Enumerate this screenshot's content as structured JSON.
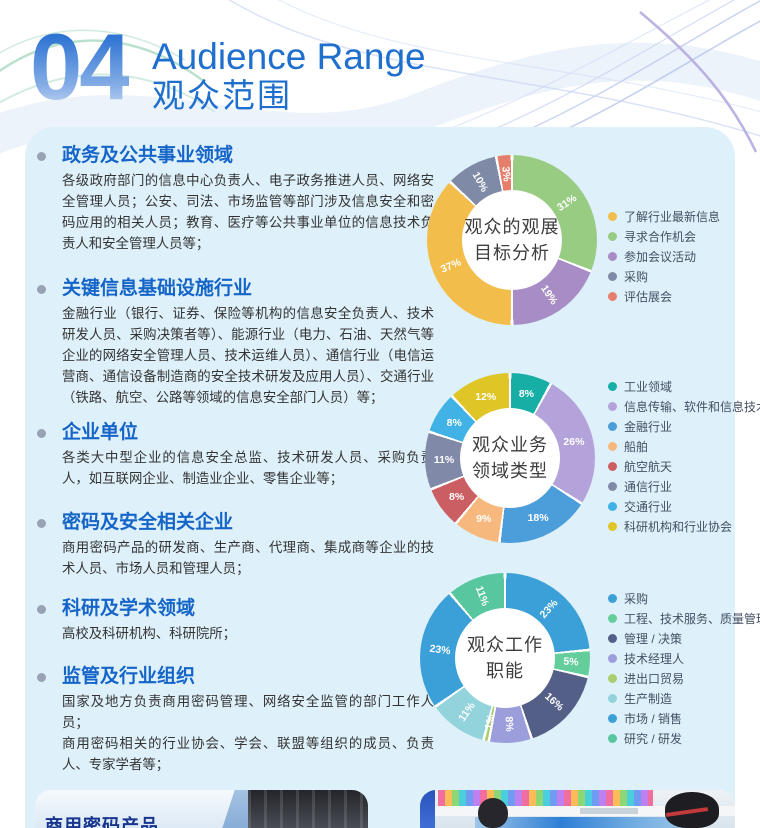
{
  "page": {
    "number": "04",
    "title_en": "Audience Range",
    "title_zh": "观众范围"
  },
  "colors": {
    "accent_blue": "#1565c9",
    "title_blue": "#1f6fce",
    "card_background": "#def0f9",
    "caption_blue": "#17348f",
    "bullet_gray": "#97a2b4"
  },
  "sections": [
    {
      "heading": "政务及公共事业领域",
      "body": [
        "各级政府部门的信息中心负责人、电子政务推进人员、网络安全管理人员；公安、司法、市场监管等部门涉及信息安全和密码应用的相关人员；教育、医疗等公共事业单位的信息技术负责人和安全管理人员等；"
      ]
    },
    {
      "heading": "关键信息基础设施行业",
      "body": [
        "金融行业（银行、证券、保险等机构的信息安全负责人、技术研发人员、采购决策者等）、能源行业（电力、石油、天然气等企业的网络安全管理人员、技术运维人员）、通信行业（电信运营商、通信设备制造商的安全技术研发及应用人员）、交通行业（铁路、航空、公路等领域的信息安全部门人员）等；"
      ]
    },
    {
      "heading": "企业单位",
      "body": [
        "各类大中型企业的信息安全总监、技术研发人员、采购负责人，如互联网企业、制造业企业、零售企业等；"
      ]
    },
    {
      "heading": "密码及安全相关企业",
      "body": [
        "商用密码产品的研发商、生产商、代理商、集成商等企业的技术人员、市场人员和管理人员；"
      ]
    },
    {
      "heading": "科研及学术领域",
      "body": [
        "高校及科研机构、科研院所；"
      ]
    },
    {
      "heading": "监管及行业组织",
      "body": [
        "国家及地方负责商用密码管理、网络安全监管的部门工作人员；",
        "商用密码相关的行业协会、学会、联盟等组织的成员、负责人、专家学者等；"
      ]
    }
  ],
  "chart_data": [
    {
      "type": "pie",
      "donut": true,
      "title": "观众的观展目标分析",
      "title_lines": [
        "观众的观展",
        "目标分析"
      ],
      "legend_position": "right",
      "label_rotation": "tangential",
      "slices": [
        {
          "label": "寻求合作机会",
          "value": 31,
          "color": "#98cc83"
        },
        {
          "label": "参加会议活动",
          "value": 19,
          "color": "#a78cc6"
        },
        {
          "label": "了解行业最新信息",
          "value": 37,
          "color": "#f2bd4b"
        },
        {
          "label": "采购",
          "value": 10,
          "color": "#7e8aa6"
        },
        {
          "label": "评估展会",
          "value": 3,
          "color": "#e57f6b"
        }
      ],
      "legend": [
        {
          "label": "了解行业最新信息",
          "color": "#f2bd4b"
        },
        {
          "label": "寻求合作机会",
          "color": "#98cc83"
        },
        {
          "label": "参加会议活动",
          "color": "#a78cc6"
        },
        {
          "label": "采购",
          "color": "#7e8aa6"
        },
        {
          "label": "评估展会",
          "color": "#e57f6b"
        }
      ]
    },
    {
      "type": "pie",
      "donut": true,
      "title": "观众业务领域类型",
      "title_lines": [
        "观众业务",
        "领域类型"
      ],
      "legend_position": "right",
      "label_rotation": "none",
      "slices": [
        {
          "label": "工业领域",
          "value": 8,
          "color": "#16aea5"
        },
        {
          "label": "信息传输、软件和信息技术",
          "value": 26,
          "color": "#b4a3db"
        },
        {
          "label": "金融行业",
          "value": 18,
          "color": "#4c9edb"
        },
        {
          "label": "船舶",
          "value": 9,
          "color": "#f6b87d"
        },
        {
          "label": "航空航天",
          "value": 8,
          "color": "#cb5e62"
        },
        {
          "label": "通信行业",
          "value": 11,
          "color": "#8089a7"
        },
        {
          "label": "交通行业",
          "value": 8,
          "color": "#41b2e5"
        },
        {
          "label": "科研机构和行业协会",
          "value": 12,
          "color": "#dfc525"
        }
      ],
      "legend": [
        {
          "label": "工业领域",
          "color": "#16aea5"
        },
        {
          "label": "信息传输、软件和信息技术",
          "color": "#b4a3db"
        },
        {
          "label": "金融行业",
          "color": "#4c9edb"
        },
        {
          "label": "船舶",
          "color": "#f6b87d"
        },
        {
          "label": "航空航天",
          "color": "#cb5e62"
        },
        {
          "label": "通信行业",
          "color": "#8089a7"
        },
        {
          "label": "交通行业",
          "color": "#41b2e5"
        },
        {
          "label": "科研机构和行业协会",
          "color": "#dfc525"
        }
      ]
    },
    {
      "type": "pie",
      "donut": true,
      "title": "观众工作职能",
      "title_lines": [
        "观众工作",
        "职能"
      ],
      "legend_position": "right",
      "label_rotation": "tangential",
      "slices": [
        {
          "label": "采购",
          "value": 23,
          "color": "#3ba0d8"
        },
        {
          "label": "工程、技术服务、质量管理",
          "value": 5,
          "color": "#63cd9c"
        },
        {
          "label": "管理 / 决策",
          "value": 16,
          "color": "#545f88"
        },
        {
          "label": "技术经理人",
          "value": 8,
          "color": "#9c9edb"
        },
        {
          "label": "进出口贸易",
          "value": 1,
          "color": "#a9ce6f"
        },
        {
          "label": "生产制造",
          "value": 11,
          "color": "#93d3db"
        },
        {
          "label": "市场 / 销售",
          "value": 23,
          "color": "#3ba0d8"
        },
        {
          "label": "研究 / 研发",
          "value": 11,
          "color": "#58c69e"
        }
      ],
      "legend": [
        {
          "label": "采购",
          "color": "#3ba0d8"
        },
        {
          "label": "工程、技术服务、质量管理",
          "color": "#63cd9c"
        },
        {
          "label": "管理 / 决策",
          "color": "#545f88"
        },
        {
          "label": "技术经理人",
          "color": "#9c9edb"
        },
        {
          "label": "进出口贸易",
          "color": "#a9ce6f"
        },
        {
          "label": "生产制造",
          "color": "#93d3db"
        },
        {
          "label": "市场 / 销售",
          "color": "#3ba0d8"
        },
        {
          "label": "研究 / 研发",
          "color": "#58c69e"
        }
      ]
    }
  ],
  "photos": {
    "left_caption": "商用密码产品"
  }
}
